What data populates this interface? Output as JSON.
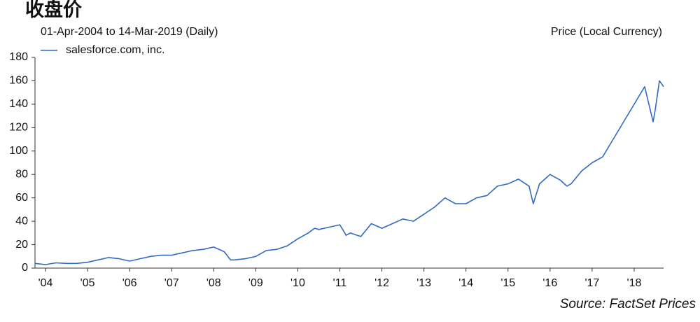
{
  "chart_data": {
    "type": "line",
    "title": "收盘价",
    "subtitle": "01-Apr-2004 to 14-Mar-2019 (Daily)",
    "y_axis_label": "Price (Local Currency)",
    "source": "Source: FactSet Prices",
    "x": [
      2004.25,
      2004.5,
      2004.75,
      2005.0,
      2005.25,
      2005.5,
      2005.75,
      2006.0,
      2006.25,
      2006.5,
      2006.75,
      2007.0,
      2007.25,
      2007.5,
      2007.75,
      2008.0,
      2008.25,
      2008.5,
      2008.75,
      2008.9,
      2009.0,
      2009.25,
      2009.5,
      2009.75,
      2010.0,
      2010.25,
      2010.5,
      2010.75,
      2010.9,
      2011.0,
      2011.25,
      2011.5,
      2011.65,
      2011.75,
      2012.0,
      2012.25,
      2012.5,
      2012.75,
      2013.0,
      2013.25,
      2013.5,
      2013.75,
      2014.0,
      2014.25,
      2014.5,
      2014.75,
      2015.0,
      2015.25,
      2015.5,
      2015.75,
      2016.0,
      2016.1,
      2016.25,
      2016.5,
      2016.75,
      2016.9,
      2017.0,
      2017.25,
      2017.5,
      2017.75,
      2018.0,
      2018.25,
      2018.5,
      2018.75,
      2018.85,
      2018.95,
      2019.0,
      2019.1,
      2019.2
    ],
    "series": [
      {
        "name": "salesforce.com, inc.",
        "color": "#2f6bbf",
        "values": [
          4,
          3,
          4.5,
          4,
          4,
          5,
          7,
          9,
          8,
          6,
          8,
          10,
          11,
          11,
          13,
          15,
          16,
          18,
          14,
          7,
          7,
          8,
          10,
          15,
          16,
          19,
          25,
          30,
          34,
          33,
          35,
          37,
          28,
          30,
          27,
          38,
          34,
          38,
          42,
          40,
          46,
          52,
          60,
          55,
          55,
          60,
          62,
          70,
          72,
          76,
          70,
          55,
          72,
          80,
          75,
          70,
          72,
          83,
          90,
          95,
          110,
          125,
          140,
          155,
          140,
          125,
          135,
          160,
          155
        ]
      }
    ],
    "xlim": [
      2004.25,
      2019.2
    ],
    "xticks": [
      {
        "value": 2004.5,
        "label": "'04"
      },
      {
        "value": 2005.5,
        "label": "'05"
      },
      {
        "value": 2006.5,
        "label": "'06"
      },
      {
        "value": 2007.5,
        "label": "'07"
      },
      {
        "value": 2008.5,
        "label": "'08"
      },
      {
        "value": 2009.5,
        "label": "'09"
      },
      {
        "value": 2010.5,
        "label": "'10"
      },
      {
        "value": 2011.5,
        "label": "'11"
      },
      {
        "value": 2012.5,
        "label": "'12"
      },
      {
        "value": 2013.5,
        "label": "'13"
      },
      {
        "value": 2014.5,
        "label": "'14"
      },
      {
        "value": 2015.5,
        "label": "'15"
      },
      {
        "value": 2016.5,
        "label": "'16"
      },
      {
        "value": 2017.5,
        "label": "'17"
      },
      {
        "value": 2018.5,
        "label": "'18"
      }
    ],
    "ylim": [
      0,
      180
    ],
    "yticks": [
      0,
      20,
      40,
      60,
      80,
      100,
      120,
      140,
      160,
      180
    ],
    "legend": "top-left"
  }
}
